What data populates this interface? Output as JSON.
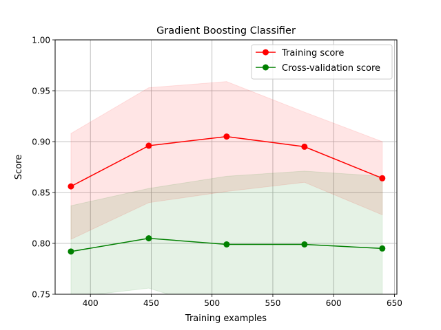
{
  "chart_data": {
    "type": "line",
    "title": "Gradient Boosting Classifier",
    "xlabel": "Training examples",
    "ylabel": "Score",
    "xlim": [
      371,
      652
    ],
    "ylim": [
      0.75,
      1.0
    ],
    "x_ticks": [
      400,
      450,
      500,
      550,
      600,
      650
    ],
    "y_ticks": [
      0.75,
      0.8,
      0.85,
      0.9,
      0.95,
      1.0
    ],
    "y_tick_labels": [
      "0.75",
      "0.80",
      "0.85",
      "0.90",
      "0.95",
      "1.00"
    ],
    "grid": true,
    "legend_position": "top-right",
    "x": [
      384,
      448,
      512,
      576,
      640
    ],
    "series": [
      {
        "name": "Training score",
        "color": "#ff0000",
        "band_color": "#ff0000",
        "values": [
          0.856,
          0.896,
          0.905,
          0.895,
          0.864
        ],
        "upper": [
          0.908,
          0.953,
          0.959,
          0.929,
          0.9
        ],
        "lower": [
          0.804,
          0.84,
          0.851,
          0.86,
          0.828
        ]
      },
      {
        "name": "Cross-validation score",
        "color": "#008000",
        "band_color": "#008000",
        "values": [
          0.792,
          0.805,
          0.799,
          0.799,
          0.795
        ],
        "upper": [
          0.837,
          0.854,
          0.866,
          0.871,
          0.866
        ],
        "lower": [
          0.747,
          0.756,
          0.732,
          0.727,
          0.724
        ]
      }
    ]
  }
}
